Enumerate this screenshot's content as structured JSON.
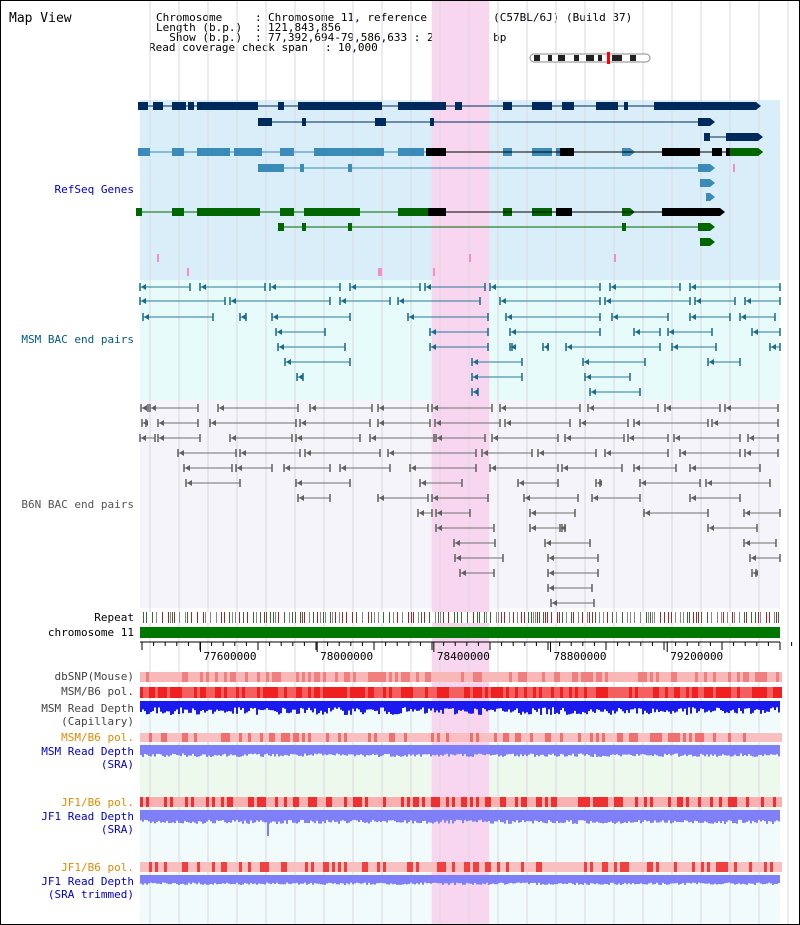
{
  "page": {
    "title": "Map View"
  },
  "header": {
    "lines": [
      {
        "key": "Chromosome     ",
        "value": "Chromosome 11, reference assembly (C57BL/6J) (Build 37)"
      },
      {
        "key": "Length (b.p.)  ",
        "value": "121,843,856"
      },
      {
        "key": "  Show (b.p.)  ",
        "value": "77,392,694-79,586,633 : 2,193,940 bp"
      },
      {
        "key": "Read coverage check span",
        "value": "10,000"
      }
    ]
  },
  "tracks": {
    "refseq": {
      "label": "RefSeq Genes",
      "color": "#0000cc"
    },
    "msm_bac": {
      "label": "MSM BAC end pairs",
      "color": "#005b7f"
    },
    "b6n_bac": {
      "label": "B6N BAC end pairs",
      "color": "#555555"
    },
    "repeat": {
      "label": "Repeat"
    },
    "chromosome": {
      "label": "chromosome 11"
    },
    "dbsnp": {
      "label": "dbSNP(Mouse)"
    },
    "msm_b6_pol": {
      "label": "MSM/B6 pol."
    },
    "msm_read_depth_cap": {
      "label1": "MSM Read Depth",
      "label2": "(Capillary)"
    },
    "msm_b6_pol_sra": {
      "label": "MSM/B6 pol.",
      "color": "#e08a00"
    },
    "msm_read_depth_sra": {
      "label1": "MSM Read Depth",
      "label2": "(SRA)",
      "color": "#0000cc"
    },
    "jf1_b6_pol": {
      "label": "JF1/B6 pol.",
      "color": "#e08a00"
    },
    "jf1_read_depth_sra": {
      "label1": "JF1 Read Depth",
      "label2": "(SRA)",
      "color": "#0000cc"
    },
    "jf1_b6_pol_trim": {
      "label": "JF1/B6 pol.",
      "color": "#e08a00"
    },
    "jf1_read_depth_trim": {
      "label1": "JF1 Read Depth",
      "label2": "(SRA trimmed)",
      "color": "#0000cc"
    }
  },
  "ruler": {
    "ticks": [
      "77600000",
      "78000000",
      "78400000",
      "78800000",
      "79200000"
    ],
    "tick_values": [
      77600000,
      78000000,
      78400000,
      78800000,
      79200000
    ],
    "range_bp": [
      77392694,
      79586633
    ]
  },
  "highlight": {
    "start_bp": 78392694,
    "end_bp": 78590000,
    "color": "#f8d6f0"
  },
  "colors": {
    "refseq_dark": "#002a5c",
    "refseq_mid": "#3a8bb8",
    "refseq_green": "#006600",
    "refseq_bg": "#d9eef8",
    "msm_bg": "#e8fbfb",
    "b6n_bg": "#f4f4fa",
    "chrom_bar": "#007700",
    "depth_blue": "#1a1aee",
    "depth_lilac": "#7f7ff8",
    "pol_red": "#f04040"
  }
}
